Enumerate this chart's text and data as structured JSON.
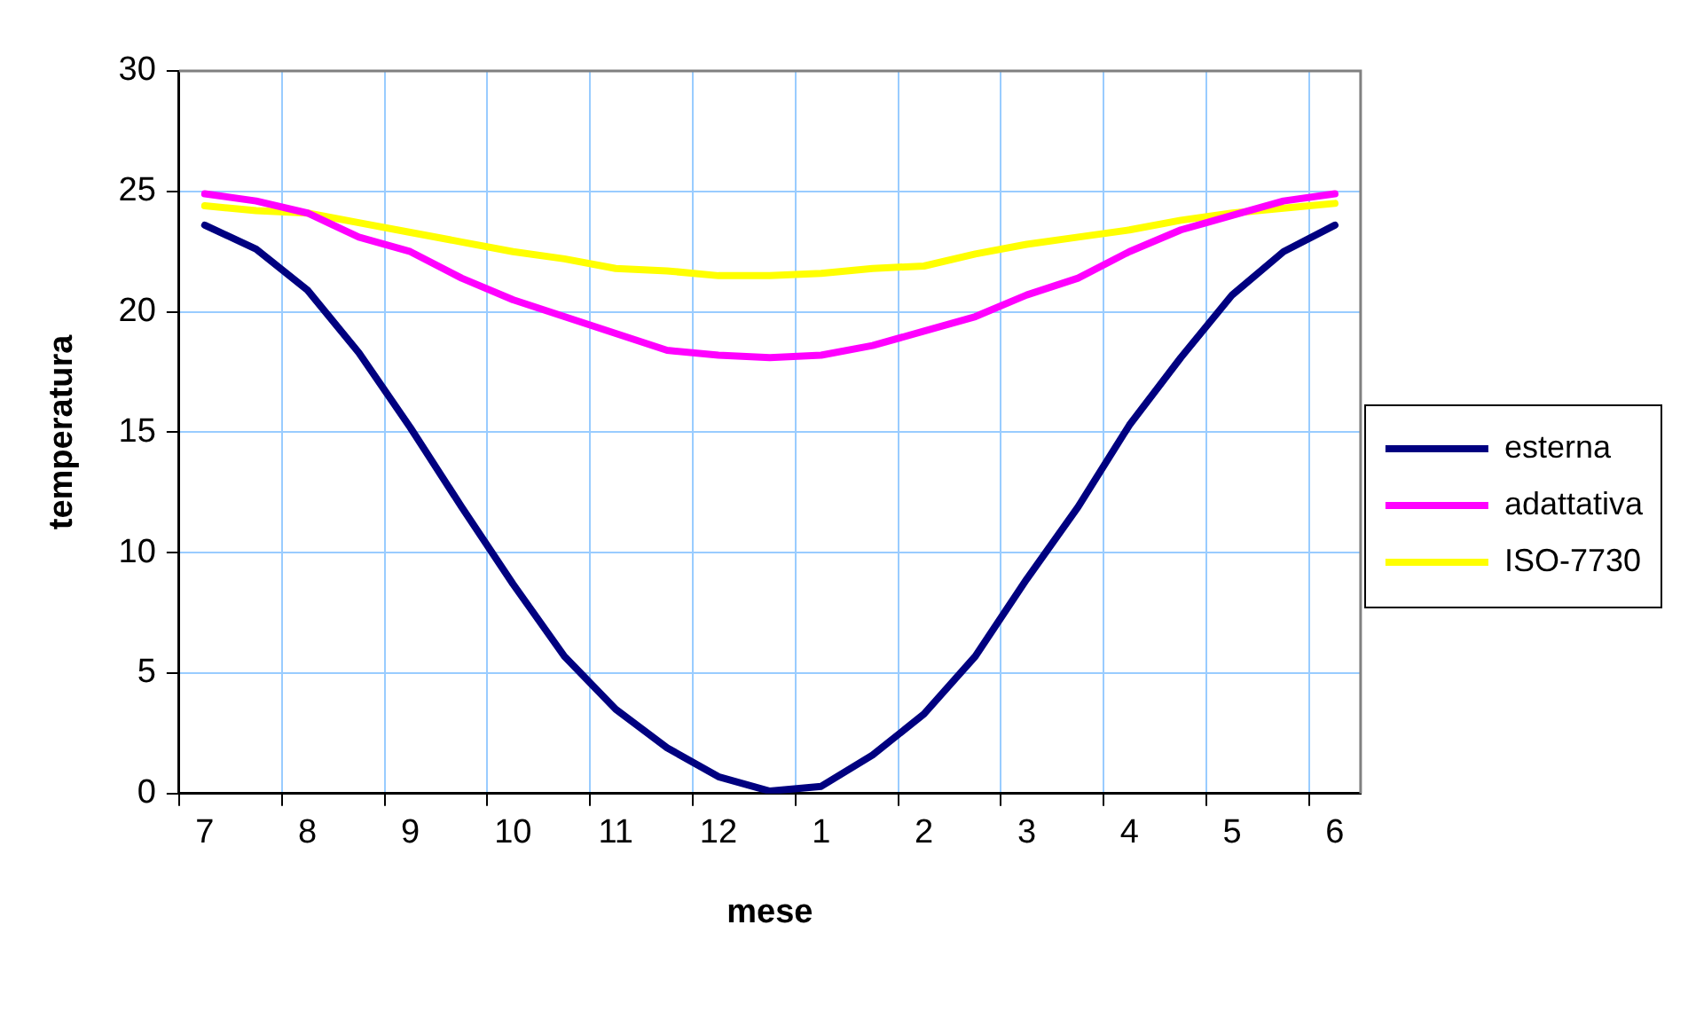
{
  "chart_data": {
    "type": "line",
    "xlabel": "mese",
    "ylabel": "temperatura",
    "categories": [
      "7",
      null,
      "8",
      null,
      "9",
      null,
      "10",
      null,
      "11",
      null,
      "12",
      null,
      "1",
      null,
      "2",
      null,
      "3",
      null,
      "4",
      null,
      "5",
      null,
      "6"
    ],
    "ylim": [
      0,
      30
    ],
    "yticks": [
      0,
      5,
      10,
      15,
      20,
      25,
      30
    ],
    "grid": true,
    "legend": "right",
    "marker": "none",
    "line_style": "solid",
    "series": [
      {
        "name": "esterna",
        "color": "#000080",
        "values": [
          23.6,
          22.6,
          20.9,
          18.3,
          15.2,
          11.9,
          8.7,
          5.7,
          3.5,
          1.9,
          0.7,
          0.1,
          0.3,
          1.6,
          3.3,
          5.7,
          8.9,
          11.9,
          15.3,
          18.1,
          20.7,
          22.5,
          23.6
        ]
      },
      {
        "name": "adattativa",
        "color": "#ff00ff",
        "values": [
          24.9,
          24.6,
          24.1,
          23.1,
          22.5,
          21.4,
          20.5,
          19.8,
          19.1,
          18.4,
          18.2,
          18.1,
          18.2,
          18.6,
          19.2,
          19.8,
          20.7,
          21.4,
          22.5,
          23.4,
          24.0,
          24.6,
          24.9
        ]
      },
      {
        "name": "ISO-7730",
        "color": "#ffff00",
        "values": [
          24.4,
          24.2,
          24.1,
          23.7,
          23.3,
          22.9,
          22.5,
          22.2,
          21.8,
          21.7,
          21.5,
          21.5,
          21.6,
          21.8,
          21.9,
          22.4,
          22.8,
          23.1,
          23.4,
          23.8,
          24.1,
          24.3,
          24.5
        ]
      }
    ]
  }
}
